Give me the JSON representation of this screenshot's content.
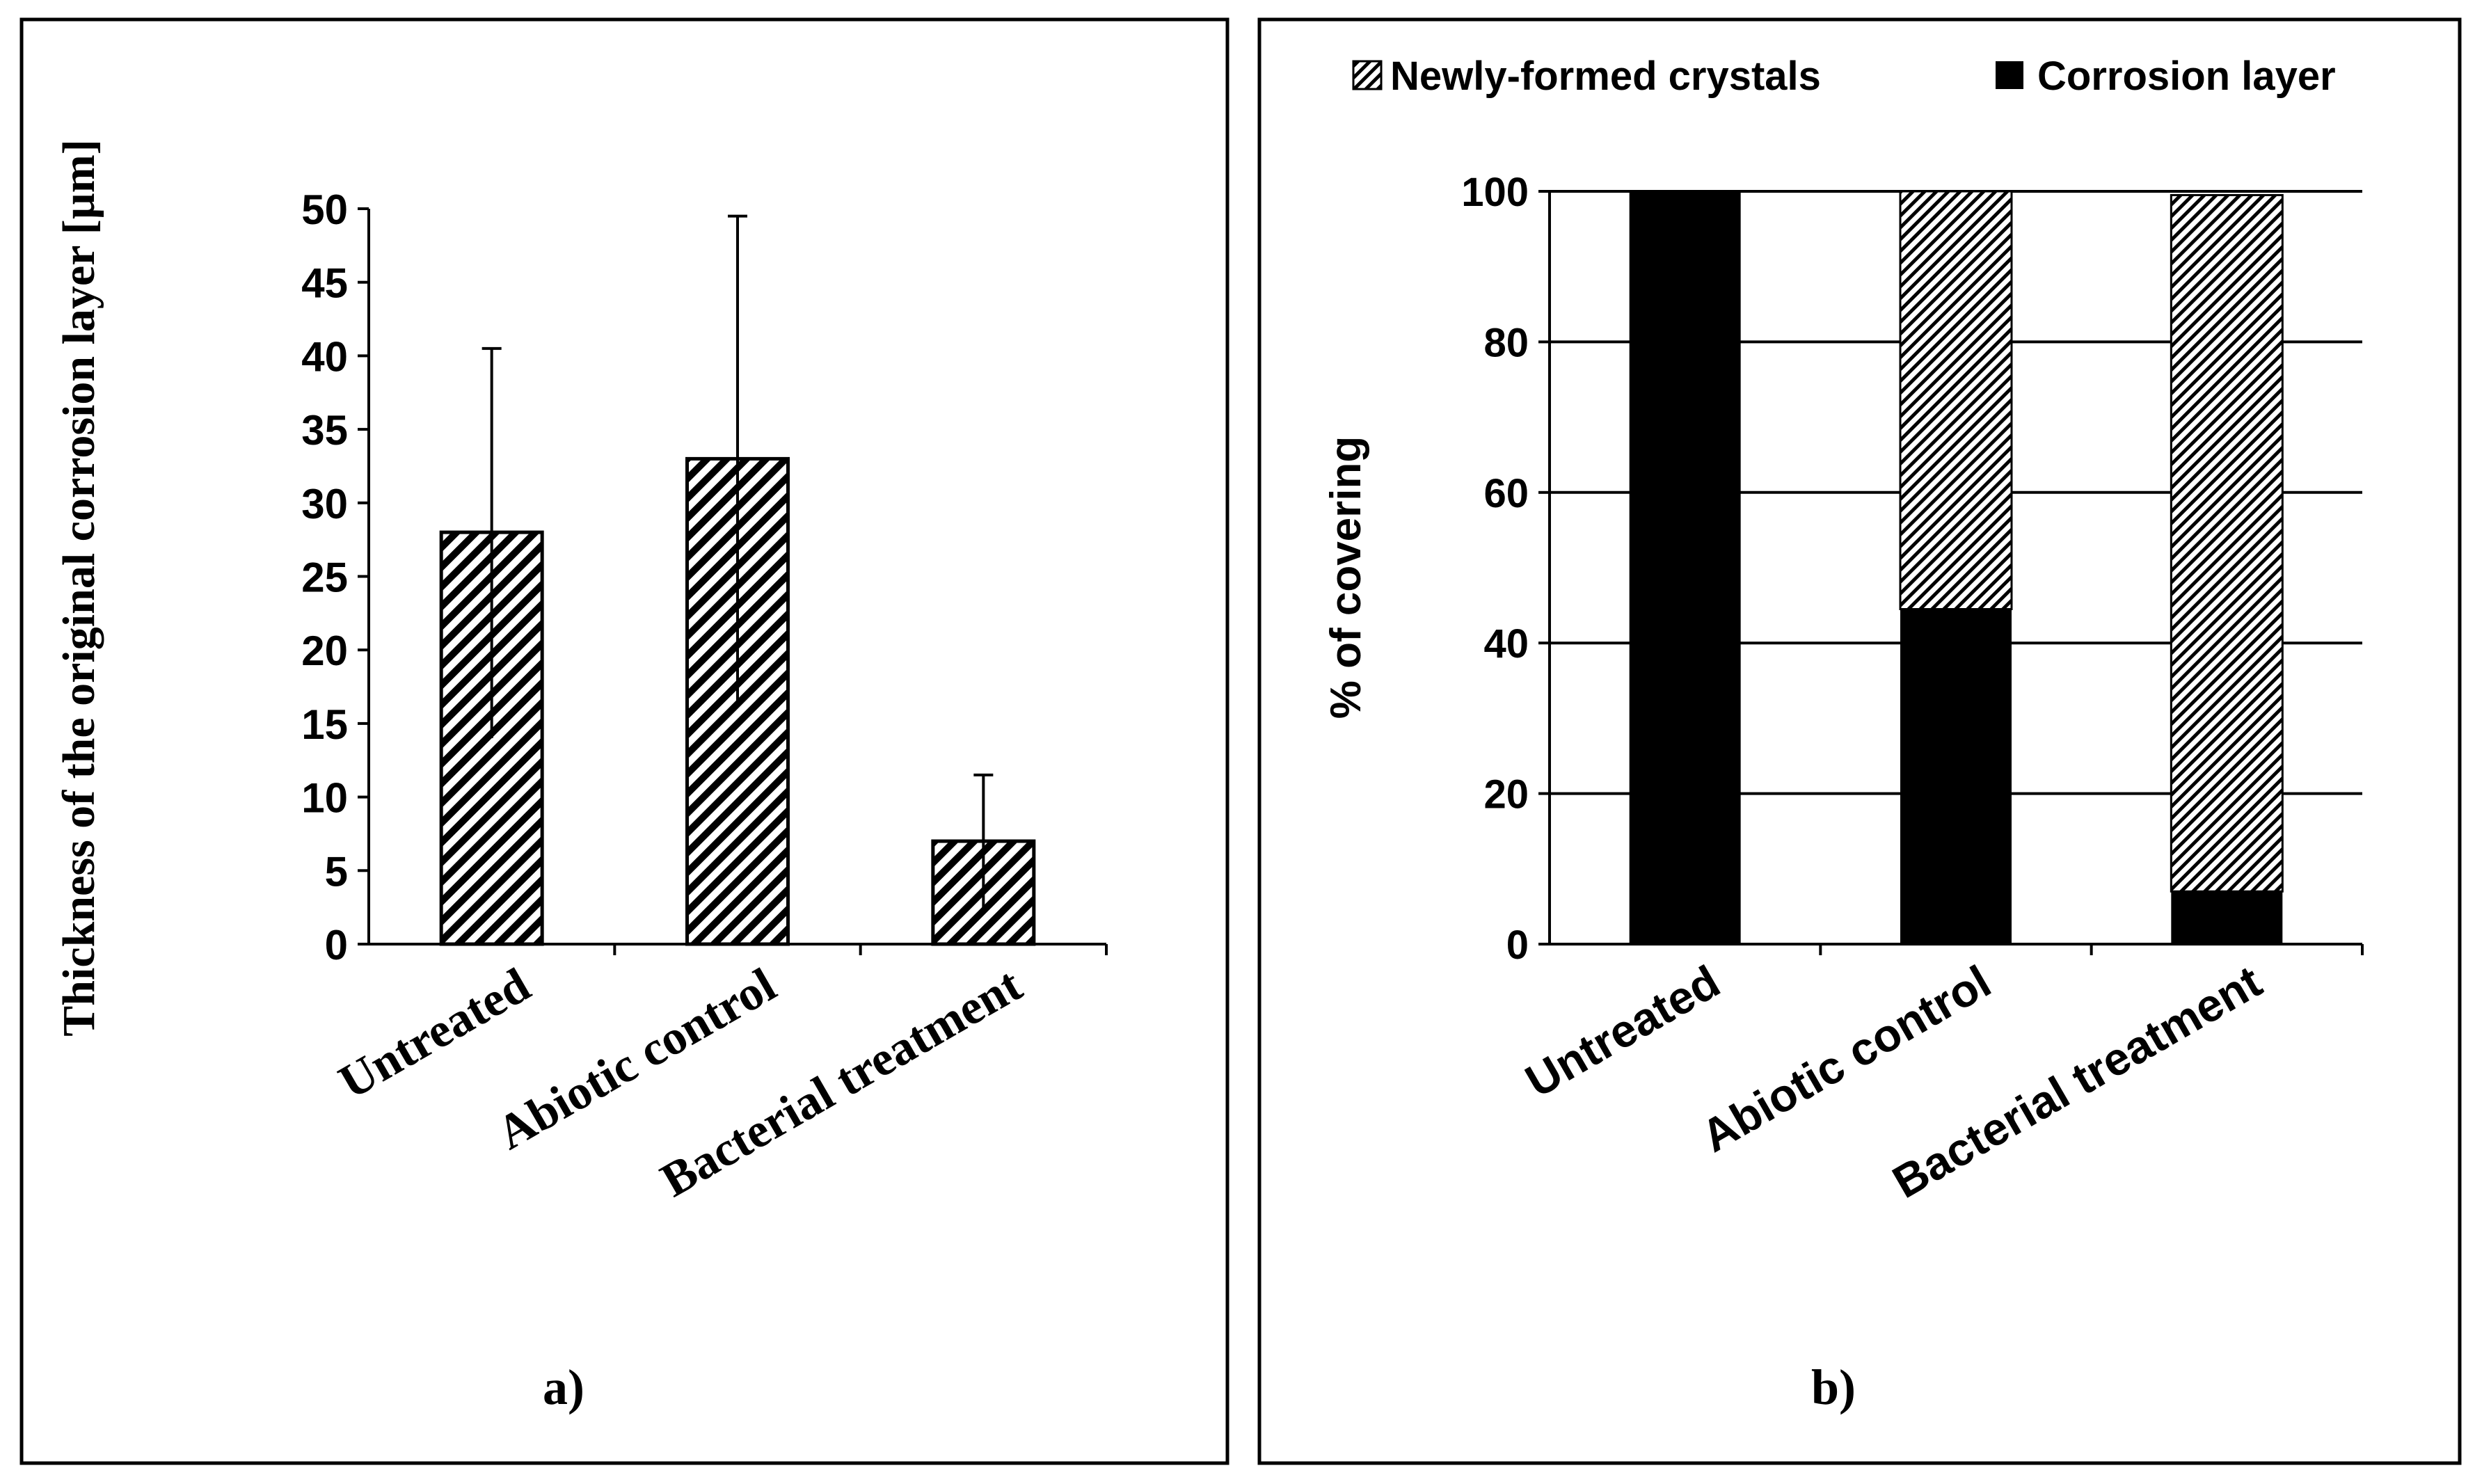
{
  "chart_data": [
    {
      "type": "bar",
      "panel_label": "a)",
      "title": "",
      "xlabel": "",
      "ylabel": "Thickness of the original corrosion layer [µm]",
      "ylim": [
        0,
        50
      ],
      "yticks": [
        "0",
        "5",
        "10",
        "15",
        "20",
        "25",
        "30",
        "35",
        "40",
        "45",
        "50"
      ],
      "categories": [
        "Untreated",
        "Abiotic control",
        "Bacterial treatment"
      ],
      "values": [
        28,
        33,
        7
      ],
      "error_high": [
        40.5,
        49.5,
        11.5
      ],
      "error_low": [
        14,
        16.5,
        2.5
      ],
      "fill": "diagonal-hatch"
    },
    {
      "type": "stacked-bar",
      "panel_label": "b)",
      "title": "",
      "xlabel": "",
      "ylabel": "% of covering",
      "ylim": [
        0,
        100
      ],
      "yticks": [
        "0",
        "20",
        "40",
        "60",
        "80",
        "100"
      ],
      "grid": true,
      "legend_position": "top",
      "categories": [
        "Untreated",
        "Abiotic control",
        "Bacterial treatment"
      ],
      "series": [
        {
          "name": "Corrosion layer",
          "values": [
            100,
            44.5,
            7
          ],
          "color": "#000000"
        },
        {
          "name": "Newly-formed crystals",
          "values": [
            0,
            55.5,
            92.5
          ],
          "color": "hatch"
        }
      ]
    }
  ]
}
